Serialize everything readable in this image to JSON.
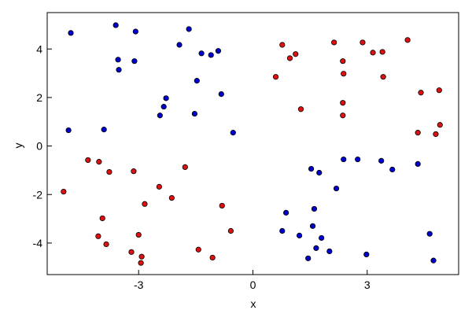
{
  "chart_data": {
    "type": "scatter",
    "x_label": "x",
    "y_label": "y",
    "xlim": [
      -5.4,
      5.4
    ],
    "ylim": [
      -5.3,
      5.5
    ],
    "xticks": [
      -3,
      0,
      3
    ],
    "yticks": [
      -4,
      -2,
      0,
      2,
      4
    ],
    "series": [
      {
        "color": "#0000cc",
        "x": [
          -4.78,
          -3.6,
          -3.08,
          -3.54,
          -3.52,
          -3.11,
          -1.93,
          -1.68,
          -1.35,
          -1.1,
          -0.91,
          -1.47,
          -2.28,
          -2.34,
          -2.44,
          -1.53,
          -0.83,
          -0.52,
          -4.84,
          -3.91,
          2.38,
          2.75,
          3.37,
          3.66,
          4.33,
          1.53,
          1.74,
          2.19,
          0.87,
          1.61,
          0.77,
          1.22,
          1.57,
          1.8,
          1.66,
          2.01,
          1.45,
          2.98,
          4.64,
          4.74
        ],
        "values": [
          4.66,
          4.98,
          4.72,
          3.56,
          3.14,
          3.5,
          4.17,
          4.82,
          3.82,
          3.75,
          3.92,
          2.69,
          1.97,
          1.62,
          1.26,
          1.33,
          2.14,
          0.55,
          0.65,
          0.68,
          -0.55,
          -0.55,
          -0.61,
          -0.97,
          -0.74,
          -0.94,
          -1.1,
          -1.75,
          -2.75,
          -2.59,
          -3.5,
          -3.69,
          -3.3,
          -3.79,
          -4.21,
          -4.34,
          -4.63,
          -4.47,
          -3.62,
          -4.72
        ]
      },
      {
        "color": "#dd1111",
        "x": [
          -4.97,
          -4.33,
          -4.04,
          -3.77,
          -3.13,
          -1.78,
          -2.46,
          -2.13,
          -2.84,
          -0.81,
          -3.95,
          -4.06,
          -3.85,
          -3.0,
          -3.19,
          -2.92,
          -2.94,
          -1.43,
          -1.06,
          -0.58,
          0.77,
          0.97,
          1.12,
          0.6,
          1.26,
          2.13,
          2.36,
          2.38,
          2.88,
          3.15,
          3.4,
          3.42,
          2.36,
          2.36,
          4.06,
          4.41,
          4.89,
          4.33,
          4.8,
          4.91
        ],
        "values": [
          -1.88,
          -0.58,
          -0.65,
          -1.07,
          -1.04,
          -0.87,
          -1.68,
          -2.14,
          -2.39,
          -2.46,
          -2.98,
          -3.72,
          -4.05,
          -3.66,
          -4.37,
          -4.56,
          -4.82,
          -4.27,
          -4.6,
          -3.5,
          4.17,
          3.62,
          3.79,
          2.85,
          1.52,
          4.27,
          3.5,
          2.98,
          4.27,
          3.85,
          3.88,
          2.85,
          1.78,
          1.26,
          4.37,
          2.2,
          2.3,
          0.55,
          0.49,
          0.87
        ]
      }
    ]
  }
}
